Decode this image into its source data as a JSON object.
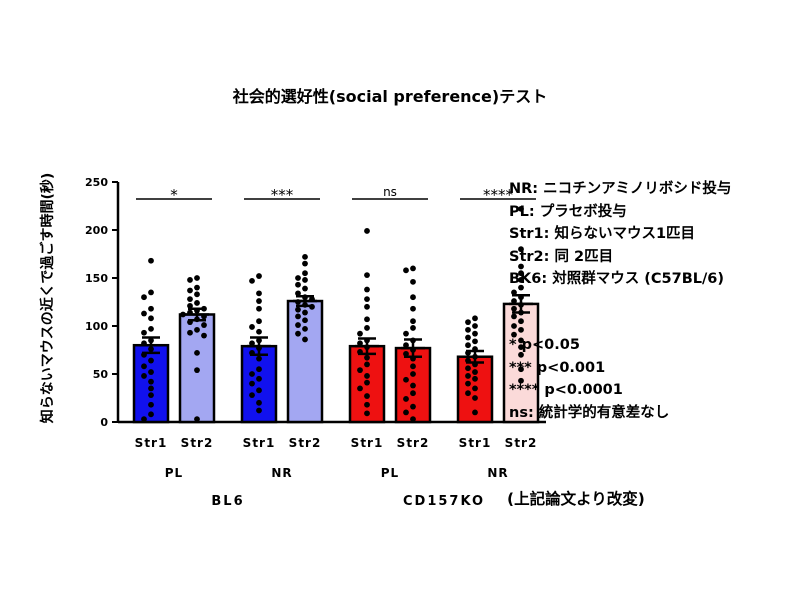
{
  "chart_data": {
    "type": "bar",
    "title": "社会的選好性(social preference)テスト",
    "ylabel": "知らないマウスの近くで過ごす時間(秒)",
    "ylim": [
      0,
      250
    ],
    "yticks": [
      0,
      50,
      100,
      150,
      200,
      250
    ],
    "bars": [
      {
        "label": "Str1",
        "mean": 80,
        "sem": 8,
        "color": "#1111ee",
        "points": [
          168,
          135,
          130,
          118,
          113,
          108,
          97,
          93,
          85,
          82,
          76,
          70,
          64,
          58,
          52,
          48,
          42,
          35,
          28,
          18,
          8,
          3
        ]
      },
      {
        "label": "Str2",
        "mean": 112,
        "sem": 6,
        "color": "#a3a7f2",
        "points": [
          150,
          148,
          140,
          137,
          133,
          128,
          124,
          121,
          118,
          116,
          114,
          112,
          110,
          107,
          104,
          101,
          96,
          93,
          90,
          72,
          54,
          3
        ]
      },
      {
        "label": "Str1",
        "mean": 79,
        "sem": 9,
        "color": "#1111ee",
        "points": [
          152,
          147,
          134,
          126,
          118,
          105,
          99,
          94,
          85,
          82,
          77,
          72,
          66,
          55,
          50,
          45,
          40,
          33,
          28,
          20,
          12
        ]
      },
      {
        "label": "Str2",
        "mean": 126,
        "sem": 5,
        "color": "#a3a7f2",
        "points": [
          172,
          165,
          155,
          150,
          148,
          143,
          139,
          134,
          130,
          128,
          125,
          122,
          120,
          117,
          114,
          110,
          106,
          101,
          97,
          92,
          86
        ]
      },
      {
        "label": "Str1",
        "mean": 79,
        "sem": 8,
        "color": "#ee1111",
        "points": [
          199,
          153,
          138,
          128,
          120,
          107,
          98,
          92,
          85,
          82,
          78,
          73,
          67,
          60,
          54,
          48,
          41,
          35,
          27,
          18,
          9
        ]
      },
      {
        "label": "Str2",
        "mean": 77,
        "sem": 9,
        "color": "#ee1111",
        "points": [
          160,
          158,
          146,
          130,
          118,
          105,
          98,
          92,
          85,
          80,
          75,
          71,
          66,
          58,
          50,
          44,
          38,
          30,
          24,
          16,
          10,
          3
        ]
      },
      {
        "label": "Str1",
        "mean": 68,
        "sem": 6,
        "color": "#ee1111",
        "points": [
          108,
          104,
          100,
          96,
          92,
          88,
          84,
          80,
          76,
          72,
          68,
          64,
          60,
          56,
          52,
          48,
          45,
          40,
          35,
          30,
          25,
          10
        ]
      },
      {
        "label": "Str2",
        "mean": 123,
        "sem": 9,
        "color": "#fbdad9",
        "points": [
          222,
          180,
          162,
          155,
          148,
          140,
          135,
          130,
          126,
          122,
          118,
          114,
          110,
          105,
          100,
          96,
          91,
          85,
          78,
          70,
          55,
          43
        ]
      }
    ],
    "significance": [
      {
        "pair": [
          0,
          1
        ],
        "label": "*"
      },
      {
        "pair": [
          2,
          3
        ],
        "label": "***"
      },
      {
        "pair": [
          4,
          5
        ],
        "label": "ns"
      },
      {
        "pair": [
          6,
          7
        ],
        "label": "****"
      }
    ],
    "condition_labels": [
      "PL",
      "NR",
      "PL",
      "NR"
    ],
    "group_labels": [
      "BL6",
      "CD157KO"
    ]
  },
  "legend_notes": [
    "NR: ニコチンアミノリボシド投与",
    "PL: プラセボ投与",
    "Str1: 知らないマウス1匹目",
    "Str2: 同  2匹目",
    "BK6: 対照群マウス (C57BL/6)"
  ],
  "significance_notes": [
    "* p<0.05",
    "*** p<0.001",
    "**** p<0.0001",
    "ns: 統計学的有意差なし"
  ],
  "source_note": "(上記論文より改変)"
}
